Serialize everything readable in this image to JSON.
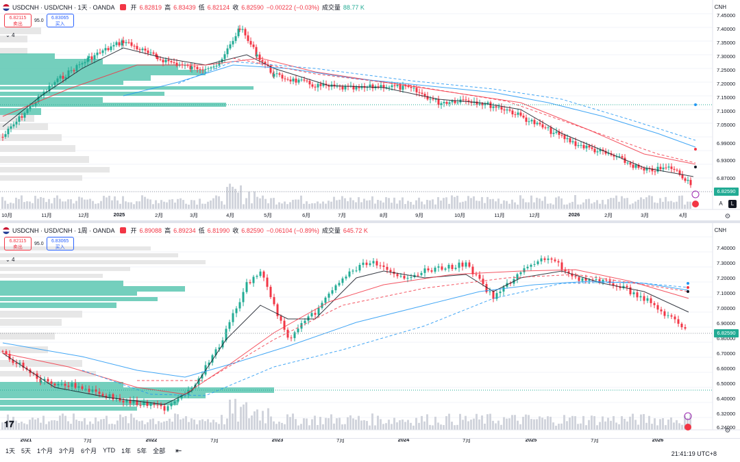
{
  "pane1": {
    "symbol": "USDCNH · USD/CNH · 1天 · OANDA",
    "ohlc": {
      "open_label": "开",
      "open": "6.82819",
      "high_label": "高",
      "high": "6.83439",
      "low_label": "低",
      "low": "6.82124",
      "close_label": "收",
      "close": "6.82590",
      "change": "−0.00222 (−0.03%)",
      "volume_label": "成交量",
      "volume": "88.77 K"
    },
    "sell": {
      "price": "6.82115",
      "label": "卖出"
    },
    "spread": "95.0",
    "buy": {
      "price": "6.83065",
      "label": "买入"
    },
    "indicator_count": "4",
    "currency": "CNH",
    "price_axis": [
      "7.45000",
      "7.40000",
      "7.35000",
      "7.30000",
      "7.25000",
      "7.20000",
      "7.15000",
      "7.10000",
      "7.05000",
      "6.99000",
      "6.93000",
      "6.87000"
    ],
    "last_price": "6.82590",
    "time_axis": [
      "10月",
      "11月",
      "12月",
      "2025",
      "2月",
      "3月",
      "4月",
      "5月",
      "6月",
      "7月",
      "8月",
      "9月",
      "10月",
      "11月",
      "12月",
      "2026",
      "2月",
      "3月",
      "4月"
    ],
    "auto_button": "A",
    "log_button": "L"
  },
  "pane2": {
    "symbol": "USDCNH · USD/CNH · 1周 · OANDA",
    "ohlc": {
      "open_label": "开",
      "open": "6.89088",
      "high_label": "高",
      "high": "6.89234",
      "low_label": "低",
      "low": "6.81990",
      "close_label": "收",
      "close": "6.82590",
      "change": "−0.06104 (−0.89%)",
      "volume_label": "成交量",
      "volume": "645.72 K"
    },
    "sell": {
      "price": "6.82115",
      "label": "卖出"
    },
    "spread": "95.0",
    "buy": {
      "price": "6.83065",
      "label": "买入"
    },
    "indicator_count": "4",
    "currency": "CNH",
    "price_axis": [
      "7.40000",
      "7.30000",
      "7.20000",
      "7.10000",
      "7.00000",
      "6.90000",
      "6.80000",
      "6.70000",
      "6.60000",
      "6.50000",
      "6.40000",
      "6.32000",
      "6.24000"
    ],
    "last_price": "6.82590",
    "time_axis": [
      "2021",
      "7月",
      "2022",
      "7月",
      "2023",
      "7月",
      "2024",
      "7月",
      "2025",
      "7月",
      "2026"
    ]
  },
  "bottom_bar": {
    "ranges": [
      "1天",
      "5天",
      "1个月",
      "3个月",
      "6个月",
      "YTD",
      "1年",
      "5年",
      "全部"
    ],
    "time": "21:41:19 UTC+8"
  },
  "colors": {
    "up": "#22ab94",
    "down": "#f23645",
    "teal_profile": "#5cc7b2",
    "grey_profile": "#d6d6d6",
    "ma_black": "#131722",
    "ma_red": "#f23645",
    "ma_blue": "#2196f3",
    "accent_blue": "#2962ff"
  },
  "icons": [
    "us-cn-flag-icon",
    "collapse-chevron-icon",
    "settings-gear-icon",
    "alert-icon",
    "calendar-range-icon",
    "tradingview-logo-icon"
  ]
}
